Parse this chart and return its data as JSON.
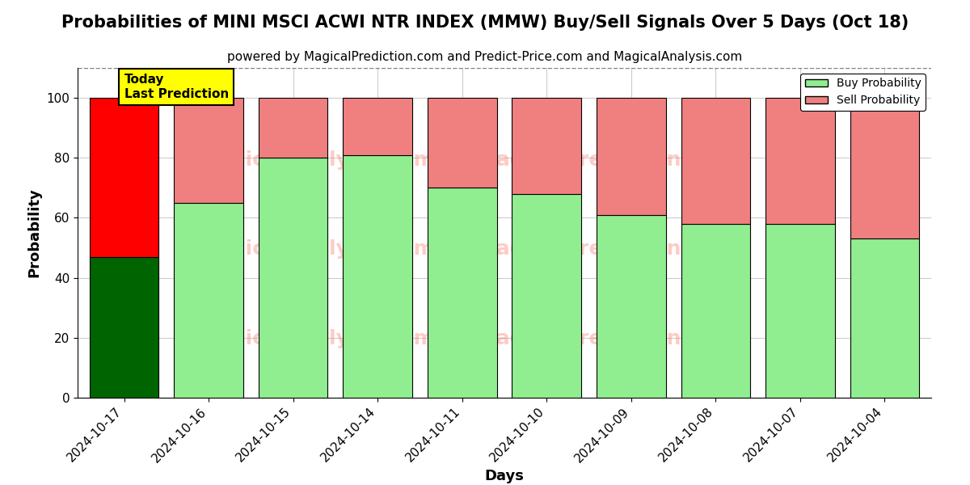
{
  "title": "Probabilities of MINI MSCI ACWI NTR INDEX (MMW) Buy/Sell Signals Over 5 Days (Oct 18)",
  "subtitle": "powered by MagicalPrediction.com and Predict-Price.com and MagicalAnalysis.com",
  "xlabel": "Days",
  "ylabel": "Probability",
  "categories": [
    "2024-10-17",
    "2024-10-16",
    "2024-10-15",
    "2024-10-14",
    "2024-10-11",
    "2024-10-10",
    "2024-10-09",
    "2024-10-08",
    "2024-10-07",
    "2024-10-04"
  ],
  "buy_values": [
    47,
    65,
    80,
    81,
    70,
    68,
    61,
    58,
    58,
    53
  ],
  "sell_values": [
    53,
    35,
    20,
    19,
    30,
    32,
    39,
    42,
    42,
    47
  ],
  "buy_colors": [
    "#006400",
    "#90EE90",
    "#90EE90",
    "#90EE90",
    "#90EE90",
    "#90EE90",
    "#90EE90",
    "#90EE90",
    "#90EE90",
    "#90EE90"
  ],
  "sell_colors": [
    "#FF0000",
    "#F08080",
    "#F08080",
    "#F08080",
    "#F08080",
    "#F08080",
    "#F08080",
    "#F08080",
    "#F08080",
    "#F08080"
  ],
  "buy_legend_color": "#90EE90",
  "sell_legend_color": "#F08080",
  "ylim": [
    0,
    110
  ],
  "dashed_line_y": 110,
  "today_label": "Today\nLast Prediction",
  "background_color": "#ffffff",
  "grid_color": "#cccccc",
  "title_fontsize": 15,
  "subtitle_fontsize": 11,
  "axis_label_fontsize": 13,
  "tick_fontsize": 11,
  "bar_width": 0.82
}
